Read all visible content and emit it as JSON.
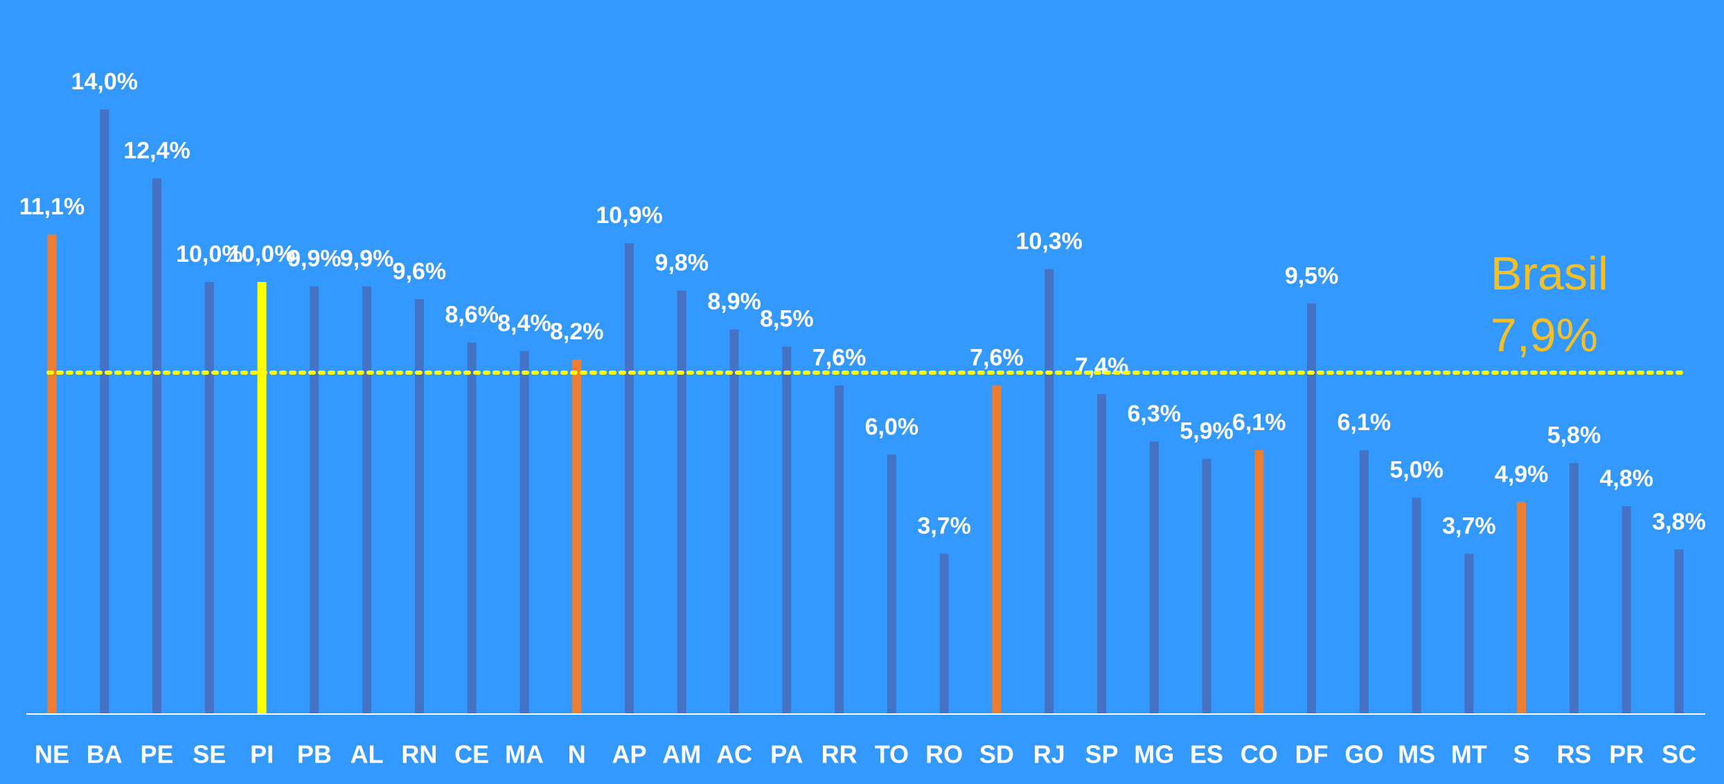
{
  "chart_data": {
    "type": "bar",
    "categories": [
      "NE",
      "BA",
      "PE",
      "SE",
      "PI",
      "PB",
      "AL",
      "RN",
      "CE",
      "MA",
      "N",
      "AP",
      "AM",
      "AC",
      "PA",
      "RR",
      "TO",
      "RO",
      "SD",
      "RJ",
      "SP",
      "MG",
      "ES",
      "CO",
      "DF",
      "GO",
      "MS",
      "MT",
      "S",
      "RS",
      "PR",
      "SC"
    ],
    "values": [
      11.1,
      14.0,
      12.4,
      10.0,
      10.0,
      9.9,
      9.9,
      9.6,
      8.6,
      8.4,
      8.2,
      10.9,
      9.8,
      8.9,
      8.5,
      7.6,
      6.0,
      3.7,
      7.6,
      10.3,
      7.4,
      6.3,
      5.9,
      6.1,
      9.5,
      6.1,
      5.0,
      3.7,
      4.9,
      5.8,
      4.8,
      3.8
    ],
    "value_labels": [
      "11,1%",
      "14,0%",
      "12,4%",
      "10,0%",
      "10,0%",
      "9,9%",
      "9,9%",
      "9,6%",
      "8,6%",
      "8,4%",
      "8,2%",
      "10,9%",
      "9,8%",
      "8,9%",
      "8,5%",
      "7,6%",
      "6,0%",
      "3,7%",
      "7,6%",
      "10,3%",
      "7,4%",
      "6,3%",
      "5,9%",
      "6,1%",
      "9,5%",
      "6,1%",
      "5,0%",
      "3,7%",
      "4,9%",
      "5,8%",
      "4,8%",
      "3,8%"
    ],
    "colors": [
      "#ed7d31",
      "#4472c4",
      "#4472c4",
      "#4472c4",
      "#ffff00",
      "#4472c4",
      "#4472c4",
      "#4472c4",
      "#4472c4",
      "#4472c4",
      "#ed7d31",
      "#4472c4",
      "#4472c4",
      "#4472c4",
      "#4472c4",
      "#4472c4",
      "#4472c4",
      "#4472c4",
      "#ed7d31",
      "#4472c4",
      "#4472c4",
      "#4472c4",
      "#4472c4",
      "#ed7d31",
      "#4472c4",
      "#4472c4",
      "#4472c4",
      "#4472c4",
      "#ed7d31",
      "#4472c4",
      "#4472c4",
      "#4472c4"
    ],
    "ylim": [
      0,
      14
    ],
    "reference_line": {
      "value": 7.9,
      "label": "Brasil",
      "value_label": "7,9%",
      "color": "#ffff00"
    }
  }
}
